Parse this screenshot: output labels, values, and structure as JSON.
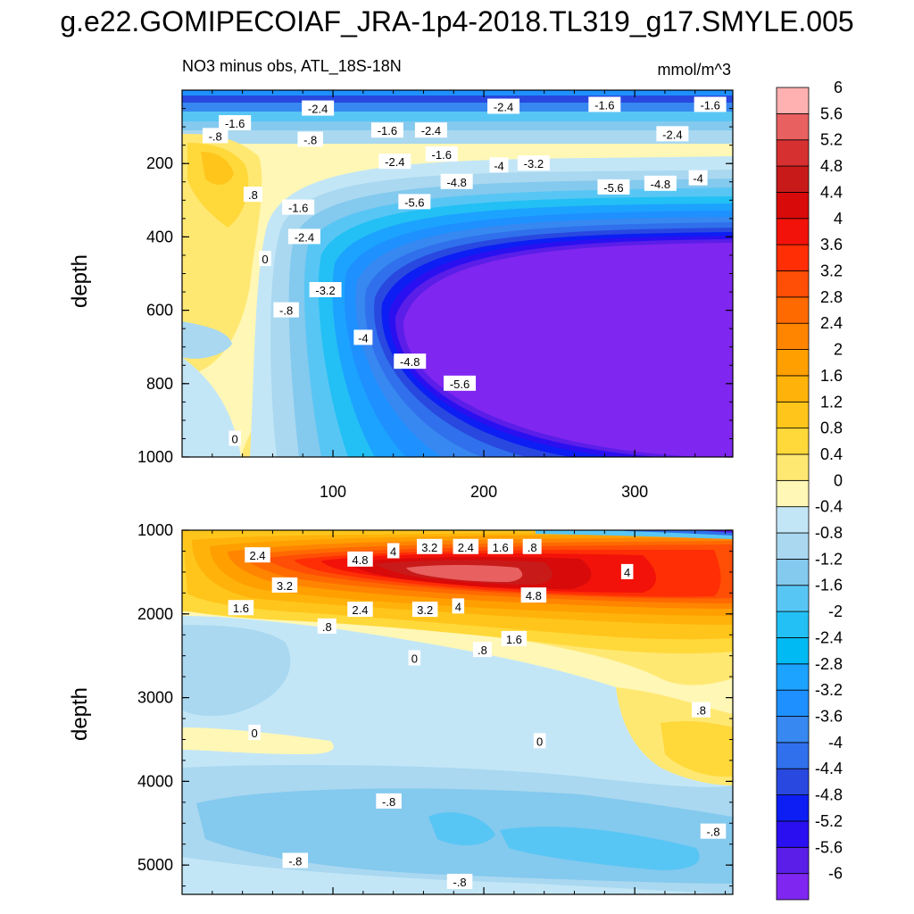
{
  "title": "g.e22.GOMIPECOIAF_JRA-1p4-2018.TL319_g17.SMYLE.005",
  "chart_data": [
    {
      "type": "heatmap",
      "subtitle_left": "NO3 minus obs, ATL_18S-18N",
      "subtitle_right": "mmol/m^3",
      "ylabel": "depth",
      "ylim": [
        1000,
        0
      ],
      "xlim": [
        0,
        365
      ],
      "yticks": [
        200,
        400,
        600,
        800,
        1000
      ],
      "xticks": [
        100,
        200,
        300
      ],
      "contour_labels": [
        {
          "text": "-2.4",
          "x": 90,
          "y": 50
        },
        {
          "text": "-1.6",
          "x": 35,
          "y": 90
        },
        {
          "text": "-.8",
          "x": 22,
          "y": 125
        },
        {
          "text": "-.8",
          "x": 85,
          "y": 135
        },
        {
          "text": "-1.6",
          "x": 136,
          "y": 110
        },
        {
          "text": "-2.4",
          "x": 165,
          "y": 110
        },
        {
          "text": "-2.4",
          "x": 213,
          "y": 45
        },
        {
          "text": "-1.6",
          "x": 280,
          "y": 40
        },
        {
          "text": "-1.6",
          "x": 350,
          "y": 40
        },
        {
          "text": "-2.4",
          "x": 325,
          "y": 120
        },
        {
          "text": "-1.6",
          "x": 172,
          "y": 175
        },
        {
          "text": "-2.4",
          "x": 141,
          "y": 195
        },
        {
          "text": "-4",
          "x": 210,
          "y": 205
        },
        {
          "text": "-3.2",
          "x": 233,
          "y": 200
        },
        {
          "text": "-4.8",
          "x": 182,
          "y": 250
        },
        {
          "text": "-5.6",
          "x": 154,
          "y": 305
        },
        {
          "text": "-5.6",
          "x": 286,
          "y": 265
        },
        {
          "text": "-4.8",
          "x": 317,
          "y": 255
        },
        {
          "text": "-4",
          "x": 342,
          "y": 240
        },
        {
          "text": ".8",
          "x": 47,
          "y": 285
        },
        {
          "text": "-1.6",
          "x": 77,
          "y": 320
        },
        {
          "text": "-2.4",
          "x": 81,
          "y": 400
        },
        {
          "text": "0",
          "x": 55,
          "y": 460
        },
        {
          "text": "-3.2",
          "x": 95,
          "y": 545
        },
        {
          "text": "-.8",
          "x": 69,
          "y": 600
        },
        {
          "text": "-4",
          "x": 120,
          "y": 675
        },
        {
          "text": "-4.8",
          "x": 151,
          "y": 740
        },
        {
          "text": "-5.6",
          "x": 184,
          "y": 800
        },
        {
          "text": "0",
          "x": 35,
          "y": 950
        }
      ]
    },
    {
      "type": "heatmap",
      "ylabel": "depth",
      "ylim": [
        5350,
        1000
      ],
      "xlim": [
        0,
        365
      ],
      "yticks": [
        1000,
        2000,
        3000,
        4000,
        5000
      ],
      "xticks": [
        100,
        200,
        300
      ],
      "contour_labels": [
        {
          "text": "2.4",
          "x": 50,
          "y": 1300
        },
        {
          "text": "4.8",
          "x": 118,
          "y": 1350
        },
        {
          "text": "4",
          "x": 140,
          "y": 1250
        },
        {
          "text": "3.2",
          "x": 164,
          "y": 1200
        },
        {
          "text": "2.4",
          "x": 188,
          "y": 1200
        },
        {
          "text": "1.6",
          "x": 211,
          "y": 1200
        },
        {
          "text": ".8",
          "x": 232,
          "y": 1200
        },
        {
          "text": "4",
          "x": 295,
          "y": 1500
        },
        {
          "text": "3.2",
          "x": 68,
          "y": 1660
        },
        {
          "text": "4.8",
          "x": 233,
          "y": 1780
        },
        {
          "text": "1.6",
          "x": 39,
          "y": 1930
        },
        {
          "text": "2.4",
          "x": 118,
          "y": 1950
        },
        {
          "text": "3.2",
          "x": 161,
          "y": 1950
        },
        {
          "text": "4",
          "x": 183,
          "y": 1910
        },
        {
          "text": ".8",
          "x": 96,
          "y": 2150
        },
        {
          "text": "1.6",
          "x": 220,
          "y": 2300
        },
        {
          "text": ".8",
          "x": 199,
          "y": 2430
        },
        {
          "text": "0",
          "x": 154,
          "y": 2530
        },
        {
          "text": ".8",
          "x": 344,
          "y": 3150
        },
        {
          "text": "0",
          "x": 48,
          "y": 3420
        },
        {
          "text": "0",
          "x": 237,
          "y": 3520
        },
        {
          "text": "-.8",
          "x": 137,
          "y": 4240
        },
        {
          "text": "-.8",
          "x": 352,
          "y": 4600
        },
        {
          "text": "-.8",
          "x": 75,
          "y": 4950
        },
        {
          "text": "-.8",
          "x": 184,
          "y": 5200
        }
      ]
    }
  ],
  "colorbar": {
    "colors": [
      "#7f26f0",
      "#5a1ee8",
      "#2a10f0",
      "#0c1ef4",
      "#2848e0",
      "#3070ec",
      "#3788f0",
      "#1e90ff",
      "#1ca2ff",
      "#00baf4",
      "#22c0f4",
      "#58c6f4",
      "#84c9ee",
      "#a9d8f0",
      "#c3e6f7",
      "#fff7b5",
      "#ffe872",
      "#ffd83a",
      "#ffc51b",
      "#ffb30a",
      "#ff9f00",
      "#ff8500",
      "#ff6a00",
      "#ff4e05",
      "#ff2e05",
      "#f21209",
      "#d80a0a",
      "#c91a1a",
      "#d63030",
      "#e86060",
      "#ffb0b0"
    ],
    "labels": [
      "-6",
      "-5.6",
      "-5.2",
      "-4.8",
      "-4.4",
      "-4",
      "-3.6",
      "-3.2",
      "-2.8",
      "-2.4",
      "-2",
      "-1.6",
      "-1.2",
      "-0.8",
      "-0.4",
      "0",
      "0.4",
      "0.8",
      "1.2",
      "1.6",
      "2",
      "2.4",
      "2.8",
      "3.2",
      "3.6",
      "4",
      "4.4",
      "4.8",
      "5.2",
      "5.6",
      "6"
    ]
  }
}
